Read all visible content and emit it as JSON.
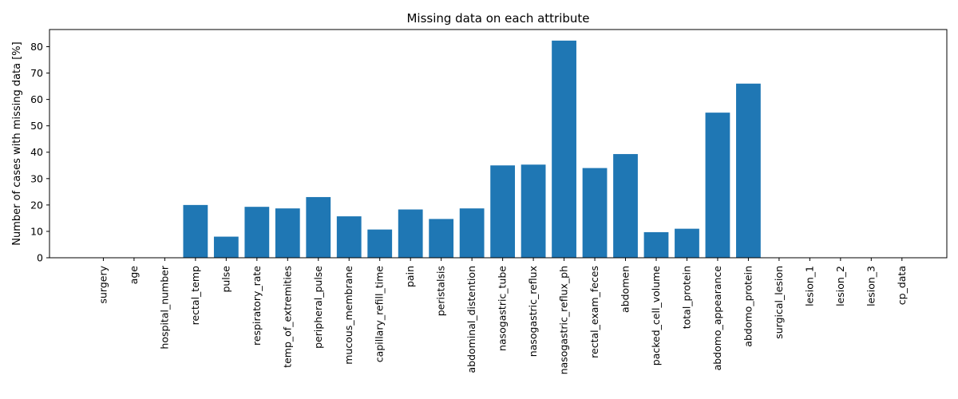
{
  "chart_data": {
    "type": "bar",
    "title": "Missing data on each attribute",
    "xlabel": "",
    "ylabel": "Number of cases with missing data [%]",
    "ylim": [
      0,
      86.5
    ],
    "yticks": [
      0,
      10,
      20,
      30,
      40,
      50,
      60,
      70,
      80
    ],
    "grid": false,
    "bar_color": "#1f77b4",
    "categories": [
      "surgery",
      "age",
      "hospital_number",
      "rectal_temp",
      "pulse",
      "respiratory_rate",
      "temp_of_extremities",
      "peripheral_pulse",
      "mucous_membrane",
      "capillary_refill_time",
      "pain",
      "peristalsis",
      "abdominal_distention",
      "nasogastric_tube",
      "nasogastric_reflux",
      "nasogastric_reflux_ph",
      "rectal_exam_feces",
      "abdomen",
      "packed_cell_volume",
      "total_protein",
      "abdomo_appearance",
      "abdomo_protein",
      "surgical_lesion",
      "lesion_1",
      "lesion_2",
      "lesion_3",
      "cp_data"
    ],
    "values": [
      0,
      0,
      0,
      20.0,
      8.0,
      19.3,
      18.7,
      23.0,
      15.7,
      10.7,
      18.3,
      14.7,
      18.7,
      35.0,
      35.3,
      82.3,
      34.0,
      39.3,
      9.7,
      11.0,
      55.0,
      66.0,
      0,
      0,
      0,
      0,
      0
    ]
  }
}
